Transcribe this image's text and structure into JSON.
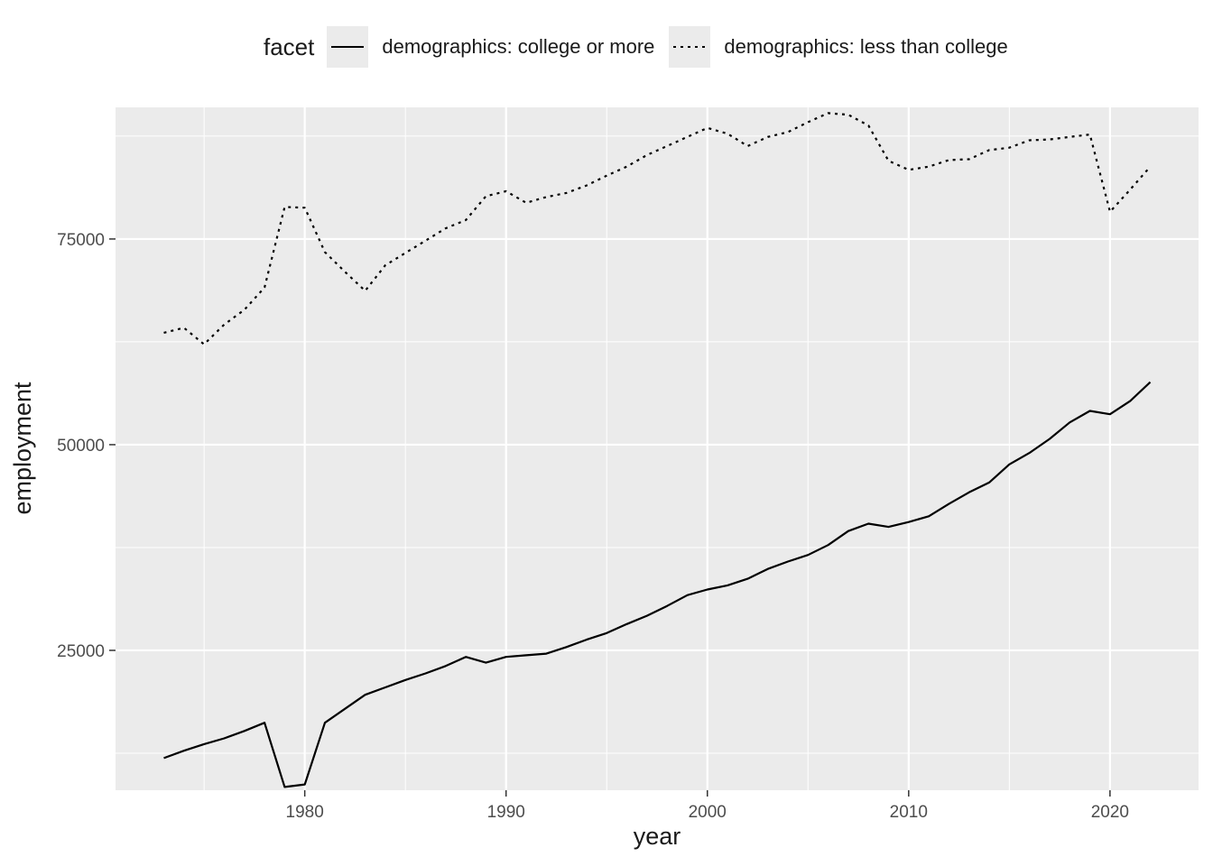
{
  "legend": {
    "title": "facet",
    "items": [
      {
        "label": "demographics: college or more",
        "linetype": "solid"
      },
      {
        "label": "demographics: less than college",
        "linetype": "dotted"
      }
    ]
  },
  "chart_data": {
    "type": "line",
    "title": "",
    "xlabel": "year",
    "ylabel": "employment",
    "xlim": [
      1970.6,
      2024.4
    ],
    "ylim": [
      8000,
      91000
    ],
    "x_ticks": [
      1980,
      1990,
      2000,
      2010,
      2020
    ],
    "y_ticks": [
      25000,
      50000,
      75000
    ],
    "grid": true,
    "legend_position": "top",
    "x": [
      1973,
      1974,
      1975,
      1976,
      1977,
      1978,
      1979,
      1980,
      1981,
      1982,
      1983,
      1984,
      1985,
      1986,
      1987,
      1988,
      1989,
      1990,
      1991,
      1992,
      1993,
      1994,
      1995,
      1996,
      1997,
      1998,
      1999,
      2000,
      2001,
      2002,
      2003,
      2004,
      2005,
      2006,
      2007,
      2008,
      2009,
      2010,
      2011,
      2012,
      2013,
      2014,
      2015,
      2016,
      2017,
      2018,
      2019,
      2020,
      2021,
      2022
    ],
    "series": [
      {
        "name": "demographics: college or more",
        "linetype": "solid",
        "values": [
          11900,
          12800,
          13600,
          14300,
          15200,
          16200,
          8400,
          8700,
          16200,
          17900,
          19600,
          20500,
          21400,
          22200,
          23100,
          24200,
          23500,
          24200,
          24400,
          24600,
          25400,
          26300,
          27100,
          28200,
          29200,
          30400,
          31700,
          32400,
          32900,
          33700,
          34900,
          35800,
          36600,
          37800,
          39500,
          40400,
          40000,
          40600,
          41300,
          42800,
          44200,
          45400,
          47600,
          49000,
          50700,
          52700,
          54100,
          53700,
          55300,
          57600
        ]
      },
      {
        "name": "demographics: less than college",
        "linetype": "dotted",
        "values": [
          63600,
          64200,
          62200,
          64600,
          66400,
          69100,
          78900,
          78800,
          73400,
          71000,
          68700,
          71800,
          73300,
          74800,
          76300,
          77300,
          80200,
          80800,
          79400,
          80100,
          80600,
          81500,
          82700,
          83800,
          85200,
          86300,
          87400,
          88500,
          87800,
          86300,
          87400,
          88000,
          89200,
          90300,
          90100,
          88800,
          84500,
          83400,
          83800,
          84600,
          84700,
          85800,
          86100,
          87000,
          87100,
          87400,
          87700,
          78300,
          81000,
          83800
        ]
      }
    ]
  }
}
